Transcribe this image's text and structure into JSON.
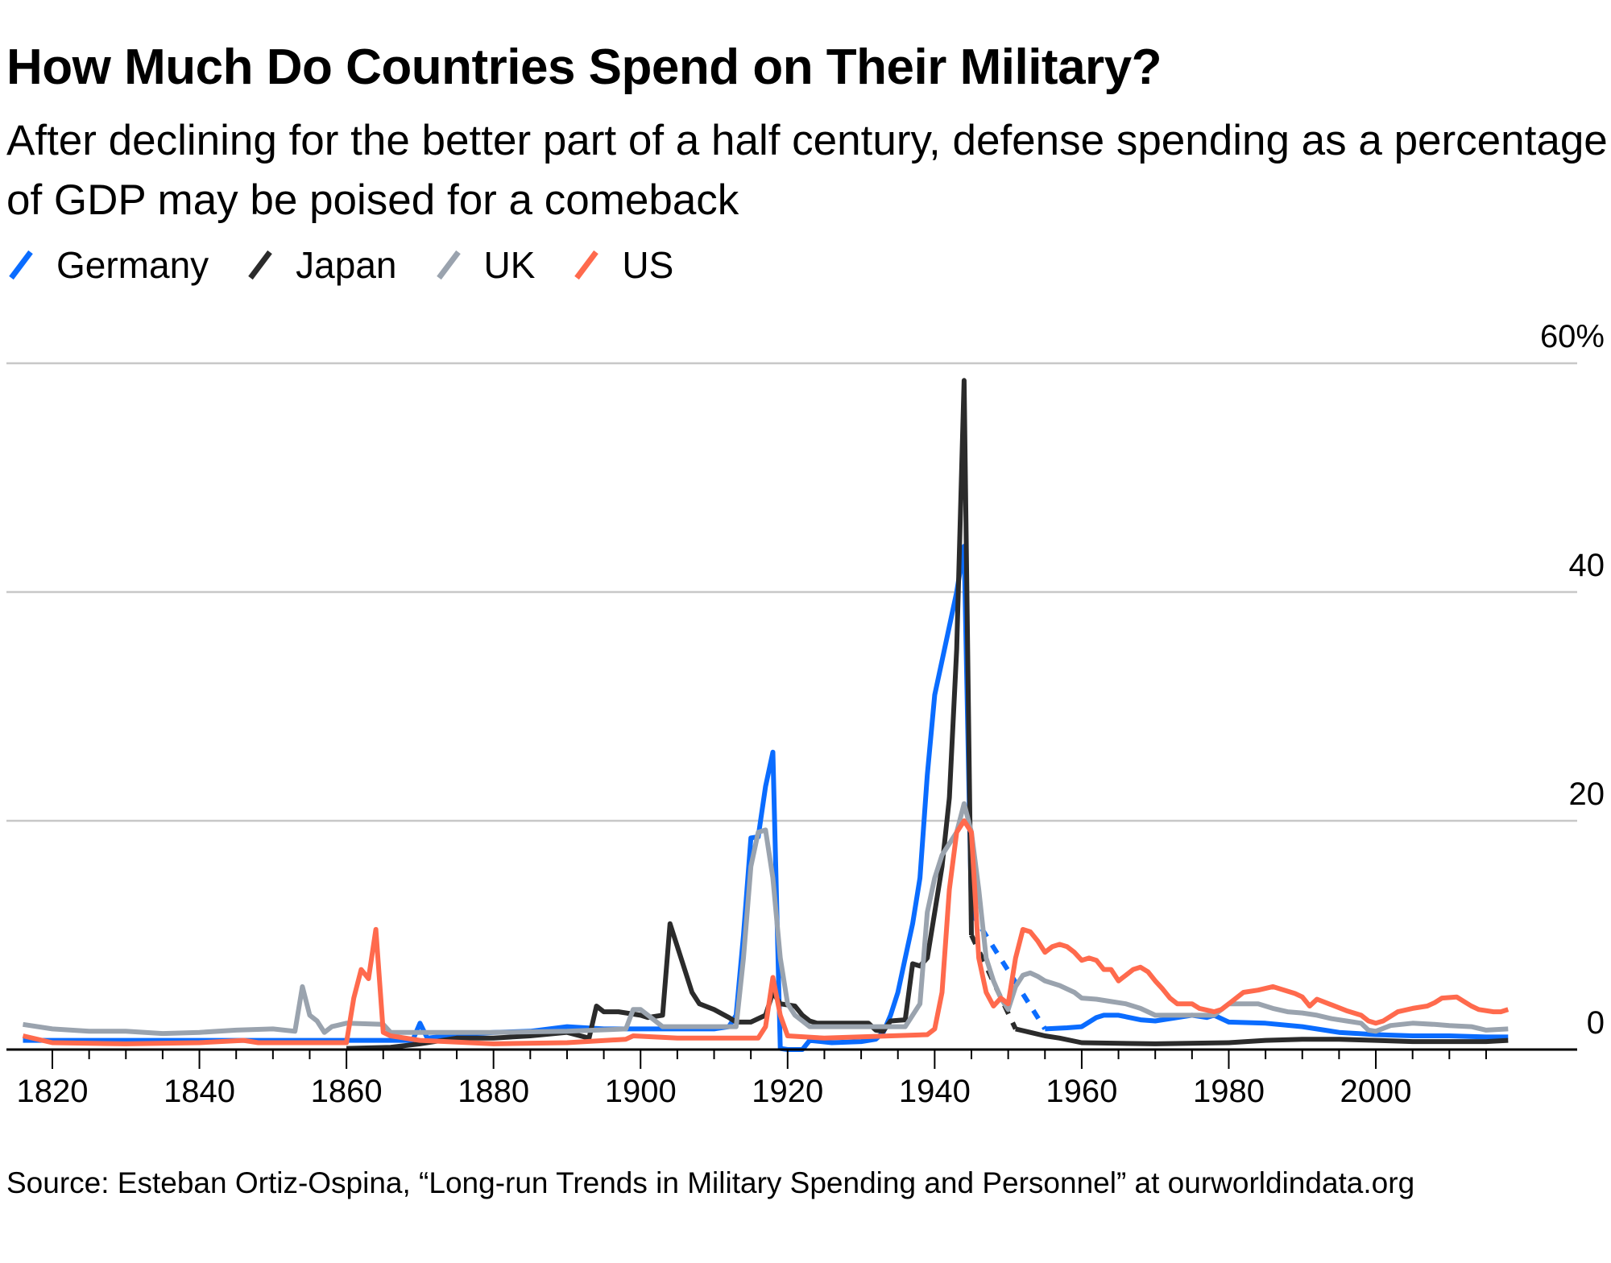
{
  "chart_data": {
    "type": "line",
    "title": "How Much Do Countries Spend on Their Military?",
    "subtitle": "After declining for the better part of a half century, defense spending as a percentage of GDP may be poised for a comeback",
    "source": "Source: Esteban Ortiz-Ospina, “Long-run Trends in Military Spending and Personnel” at ourworldindata.org",
    "xlabel": "",
    "ylabel": "",
    "xlim": [
      1815,
      2020
    ],
    "ylim": [
      0,
      60
    ],
    "x_ticks": [
      "1820",
      "1840",
      "1860",
      "1880",
      "1900",
      "1920",
      "1940",
      "1960",
      "1980",
      "2000"
    ],
    "y_ticks": [
      {
        "value": 0,
        "label": "0"
      },
      {
        "value": 20,
        "label": "20"
      },
      {
        "value": 40,
        "label": "40"
      },
      {
        "value": 60,
        "label": "60%"
      }
    ],
    "grid": true,
    "legend_placement": "top-left",
    "series": [
      {
        "name": "Germany",
        "color": "#0a6cff",
        "points": [
          [
            1816,
            0.8
          ],
          [
            1830,
            0.8
          ],
          [
            1850,
            0.8
          ],
          [
            1869,
            0.8
          ],
          [
            1870,
            2.3
          ],
          [
            1871,
            1.0
          ],
          [
            1875,
            1.3
          ],
          [
            1880,
            1.5
          ],
          [
            1885,
            1.6
          ],
          [
            1890,
            2.0
          ],
          [
            1895,
            1.8
          ],
          [
            1900,
            1.8
          ],
          [
            1905,
            1.8
          ],
          [
            1910,
            1.8
          ],
          [
            1912,
            2.0
          ],
          [
            1913,
            3.0
          ],
          [
            1914,
            10
          ],
          [
            1915,
            18.5
          ],
          [
            1916,
            18.6
          ],
          [
            1917,
            23
          ],
          [
            1918,
            26
          ],
          [
            1919,
            0.1
          ],
          [
            1920,
            0
          ],
          [
            1922,
            0
          ],
          [
            1923,
            0.8
          ],
          [
            1926,
            0.6
          ],
          [
            1930,
            0.7
          ],
          [
            1932,
            0.9
          ],
          [
            1933,
            1.5
          ],
          [
            1934,
            3
          ],
          [
            1935,
            5
          ],
          [
            1936,
            8
          ],
          [
            1937,
            11
          ],
          [
            1938,
            15
          ],
          [
            1939,
            24
          ],
          [
            1940,
            31
          ],
          [
            1941,
            34
          ],
          [
            1942,
            37
          ],
          [
            1943,
            40
          ],
          [
            1944,
            44
          ],
          [
            1945,
            12
          ]
        ],
        "dashed_points": [
          [
            1945,
            12
          ],
          [
            1955,
            1.8
          ]
        ],
        "points_after": [
          [
            1955,
            1.8
          ],
          [
            1958,
            1.9
          ],
          [
            1960,
            2.0
          ],
          [
            1962,
            2.8
          ],
          [
            1963,
            3.0
          ],
          [
            1965,
            3.0
          ],
          [
            1968,
            2.6
          ],
          [
            1970,
            2.5
          ],
          [
            1975,
            3.0
          ],
          [
            1977,
            2.8
          ],
          [
            1978,
            3.0
          ],
          [
            1980,
            2.4
          ],
          [
            1985,
            2.3
          ],
          [
            1990,
            2.0
          ],
          [
            1995,
            1.5
          ],
          [
            2000,
            1.3
          ],
          [
            2005,
            1.2
          ],
          [
            2010,
            1.2
          ],
          [
            2015,
            1.1
          ],
          [
            2018,
            1.1
          ]
        ]
      },
      {
        "name": "Japan",
        "color": "#2b2b2b",
        "points": [
          [
            1860,
            0.1
          ],
          [
            1866,
            0.2
          ],
          [
            1870,
            0.5
          ],
          [
            1875,
            1.0
          ],
          [
            1880,
            1.0
          ],
          [
            1885,
            1.2
          ],
          [
            1890,
            1.5
          ],
          [
            1893,
            1.0
          ],
          [
            1894,
            3.8
          ],
          [
            1895,
            3.3
          ],
          [
            1897,
            3.3
          ],
          [
            1900,
            3.0
          ],
          [
            1901,
            2.8
          ],
          [
            1903,
            3.0
          ],
          [
            1904,
            11
          ],
          [
            1905,
            9
          ],
          [
            1906,
            7
          ],
          [
            1907,
            5
          ],
          [
            1908,
            4
          ],
          [
            1910,
            3.5
          ],
          [
            1912,
            2.8
          ],
          [
            1913,
            2.4
          ],
          [
            1915,
            2.4
          ],
          [
            1917,
            3.0
          ],
          [
            1918,
            5.0
          ],
          [
            1919,
            4.0
          ],
          [
            1921,
            3.8
          ],
          [
            1922,
            3.0
          ],
          [
            1923,
            2.5
          ],
          [
            1924,
            2.3
          ],
          [
            1931,
            2.3
          ],
          [
            1932,
            1.7
          ],
          [
            1933,
            1.6
          ],
          [
            1934,
            2.5
          ],
          [
            1936,
            2.6
          ],
          [
            1937,
            7.5
          ],
          [
            1938,
            7.3
          ],
          [
            1939,
            8
          ],
          [
            1940,
            12
          ],
          [
            1941,
            16
          ],
          [
            1942,
            22
          ],
          [
            1943,
            35
          ],
          [
            1944,
            58.5
          ],
          [
            1945,
            10
          ]
        ],
        "dashed_points": [
          [
            1945,
            10
          ],
          [
            1951,
            1.8
          ]
        ],
        "points_after": [
          [
            1951,
            1.8
          ],
          [
            1953,
            1.5
          ],
          [
            1955,
            1.2
          ],
          [
            1957,
            1.0
          ],
          [
            1960,
            0.6
          ],
          [
            1970,
            0.5
          ],
          [
            1980,
            0.6
          ],
          [
            1985,
            0.8
          ],
          [
            1990,
            0.9
          ],
          [
            1995,
            0.9
          ],
          [
            2000,
            0.8
          ],
          [
            2005,
            0.7
          ],
          [
            2010,
            0.7
          ],
          [
            2015,
            0.7
          ],
          [
            2018,
            0.8
          ]
        ]
      },
      {
        "name": "UK",
        "color": "#9aa3ae",
        "points": [
          [
            1816,
            2.2
          ],
          [
            1820,
            1.8
          ],
          [
            1825,
            1.6
          ],
          [
            1830,
            1.6
          ],
          [
            1835,
            1.4
          ],
          [
            1840,
            1.5
          ],
          [
            1845,
            1.7
          ],
          [
            1850,
            1.8
          ],
          [
            1853,
            1.6
          ],
          [
            1854,
            5.5
          ],
          [
            1855,
            3
          ],
          [
            1856,
            2.5
          ],
          [
            1857,
            1.5
          ],
          [
            1858,
            2.0
          ],
          [
            1860,
            2.3
          ],
          [
            1865,
            2.2
          ],
          [
            1866,
            1.5
          ],
          [
            1870,
            1.5
          ],
          [
            1880,
            1.5
          ],
          [
            1890,
            1.6
          ],
          [
            1898,
            1.8
          ],
          [
            1899,
            3.5
          ],
          [
            1900,
            3.5
          ],
          [
            1901,
            3.0
          ],
          [
            1902,
            2.5
          ],
          [
            1903,
            2.0
          ],
          [
            1913,
            2.0
          ],
          [
            1914,
            8
          ],
          [
            1915,
            16
          ],
          [
            1916,
            19
          ],
          [
            1917,
            19.2
          ],
          [
            1918,
            15
          ],
          [
            1919,
            8
          ],
          [
            1920,
            4
          ],
          [
            1921,
            3
          ],
          [
            1922,
            2.5
          ],
          [
            1923,
            2.0
          ],
          [
            1936,
            2.0
          ],
          [
            1937,
            3
          ],
          [
            1938,
            4
          ],
          [
            1939,
            12
          ],
          [
            1940,
            15
          ],
          [
            1941,
            17
          ],
          [
            1942,
            18
          ],
          [
            1943,
            19
          ],
          [
            1944,
            21.5
          ],
          [
            1945,
            19
          ],
          [
            1946,
            14
          ],
          [
            1947,
            8
          ],
          [
            1948,
            6
          ],
          [
            1949,
            4.5
          ],
          [
            1950,
            3.5
          ],
          [
            1951,
            5.5
          ],
          [
            1952,
            6.5
          ],
          [
            1953,
            6.7
          ],
          [
            1954,
            6.4
          ],
          [
            1955,
            6
          ],
          [
            1957,
            5.6
          ],
          [
            1959,
            5
          ],
          [
            1960,
            4.5
          ],
          [
            1962,
            4.4
          ],
          [
            1964,
            4.2
          ],
          [
            1966,
            4.0
          ],
          [
            1968,
            3.6
          ],
          [
            1970,
            3.0
          ],
          [
            1975,
            3.0
          ],
          [
            1978,
            3.0
          ],
          [
            1979,
            3.5
          ],
          [
            1980,
            4.0
          ],
          [
            1982,
            4.0
          ],
          [
            1984,
            4.0
          ],
          [
            1986,
            3.6
          ],
          [
            1988,
            3.3
          ],
          [
            1990,
            3.2
          ],
          [
            1992,
            3.0
          ],
          [
            1994,
            2.7
          ],
          [
            1996,
            2.5
          ],
          [
            1998,
            2.3
          ],
          [
            1999,
            1.7
          ],
          [
            2000,
            1.6
          ],
          [
            2002,
            2.1
          ],
          [
            2005,
            2.3
          ],
          [
            2008,
            2.2
          ],
          [
            2010,
            2.1
          ],
          [
            2013,
            2.0
          ],
          [
            2015,
            1.7
          ],
          [
            2018,
            1.8
          ]
        ]
      },
      {
        "name": "US",
        "color": "#ff6a4d",
        "points": [
          [
            1816,
            1.2
          ],
          [
            1820,
            0.6
          ],
          [
            1830,
            0.5
          ],
          [
            1840,
            0.6
          ],
          [
            1846,
            0.8
          ],
          [
            1848,
            0.6
          ],
          [
            1860,
            0.6
          ],
          [
            1861,
            4.5
          ],
          [
            1862,
            7
          ],
          [
            1863,
            6.2
          ],
          [
            1864,
            10.5
          ],
          [
            1865,
            1.5
          ],
          [
            1866,
            1.2
          ],
          [
            1870,
            0.8
          ],
          [
            1880,
            0.5
          ],
          [
            1890,
            0.6
          ],
          [
            1898,
            0.9
          ],
          [
            1899,
            1.2
          ],
          [
            1905,
            1.0
          ],
          [
            1916,
            1.0
          ],
          [
            1917,
            2.0
          ],
          [
            1918,
            6.3
          ],
          [
            1919,
            3.0
          ],
          [
            1920,
            1.2
          ],
          [
            1925,
            1.0
          ],
          [
            1939,
            1.3
          ],
          [
            1940,
            1.8
          ],
          [
            1941,
            5
          ],
          [
            1942,
            14
          ],
          [
            1943,
            19
          ],
          [
            1944,
            20
          ],
          [
            1945,
            19
          ],
          [
            1946,
            8
          ],
          [
            1947,
            5
          ],
          [
            1948,
            3.8
          ],
          [
            1949,
            4.5
          ],
          [
            1950,
            4.0
          ],
          [
            1951,
            8
          ],
          [
            1952,
            10.5
          ],
          [
            1953,
            10.3
          ],
          [
            1954,
            9.5
          ],
          [
            1955,
            8.5
          ],
          [
            1956,
            9
          ],
          [
            1957,
            9.2
          ],
          [
            1958,
            9
          ],
          [
            1959,
            8.5
          ],
          [
            1960,
            7.8
          ],
          [
            1961,
            8
          ],
          [
            1962,
            7.8
          ],
          [
            1963,
            7
          ],
          [
            1964,
            7
          ],
          [
            1965,
            6
          ],
          [
            1966,
            6.5
          ],
          [
            1967,
            7
          ],
          [
            1968,
            7.2
          ],
          [
            1969,
            6.8
          ],
          [
            1970,
            6
          ],
          [
            1971,
            5.3
          ],
          [
            1972,
            4.5
          ],
          [
            1973,
            4
          ],
          [
            1975,
            4
          ],
          [
            1976,
            3.6
          ],
          [
            1978,
            3.3
          ],
          [
            1979,
            3.5
          ],
          [
            1980,
            4
          ],
          [
            1981,
            4.5
          ],
          [
            1982,
            5
          ],
          [
            1984,
            5.2
          ],
          [
            1986,
            5.5
          ],
          [
            1987,
            5.3
          ],
          [
            1989,
            4.9
          ],
          [
            1990,
            4.6
          ],
          [
            1991,
            3.8
          ],
          [
            1992,
            4.4
          ],
          [
            1994,
            3.9
          ],
          [
            1996,
            3.4
          ],
          [
            1998,
            3.0
          ],
          [
            1999,
            2.5
          ],
          [
            2000,
            2.3
          ],
          [
            2001,
            2.5
          ],
          [
            2003,
            3.3
          ],
          [
            2005,
            3.6
          ],
          [
            2007,
            3.8
          ],
          [
            2008,
            4.1
          ],
          [
            2009,
            4.5
          ],
          [
            2011,
            4.6
          ],
          [
            2012,
            4.2
          ],
          [
            2013,
            3.8
          ],
          [
            2014,
            3.5
          ],
          [
            2016,
            3.3
          ],
          [
            2017,
            3.3
          ],
          [
            2018,
            3.5
          ]
        ]
      }
    ]
  }
}
